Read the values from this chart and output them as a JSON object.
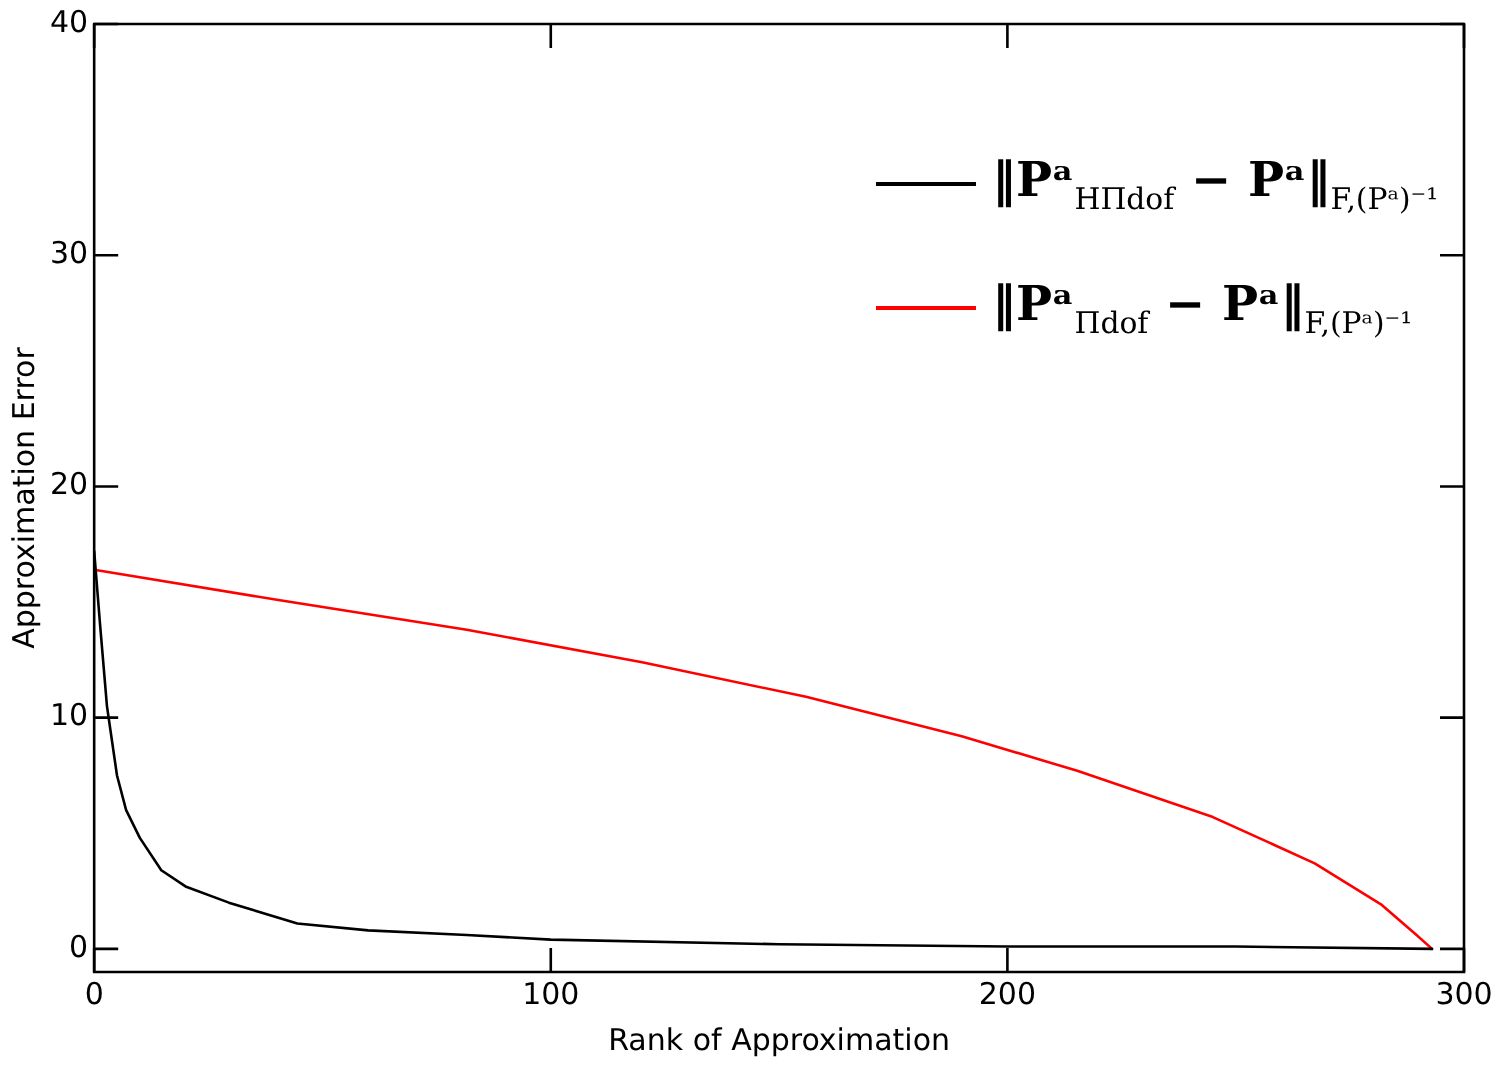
{
  "chart_data": {
    "type": "line",
    "xlabel": "Rank of Approximation",
    "ylabel": "Approximation Error",
    "xlim": [
      0,
      300
    ],
    "xticks": [
      0,
      100,
      200,
      300
    ],
    "ylim": [
      -1,
      40
    ],
    "yticks": [
      0,
      10,
      20,
      30,
      40
    ],
    "grid": false,
    "legend": "top right",
    "marker": "none",
    "line_style": "solid",
    "series": [
      {
        "name": "‖Pᵃ$_{HΠdof}$ − Pᵃ‖$_{F,(Pᵃ)⁻¹}$",
        "color": "#000000",
        "x": [
          0,
          1.3,
          2.8,
          5,
          7,
          10,
          14.7,
          20,
          29.5,
          44.5,
          60,
          81.6,
          100,
          150,
          200,
          250,
          293
        ],
        "values": [
          17.2,
          14,
          10.5,
          7.5,
          6,
          4.8,
          3.4,
          2.7,
          2,
          1.1,
          0.8,
          0.6,
          0.4,
          0.2,
          0.1,
          0.1,
          0
        ]
      },
      {
        "name": "‖Pᵃ$_{Πdof}$ − Pᵃ‖$_{F,(Pᵃ)⁻¹}$",
        "color": "#ff0000",
        "x": [
          0,
          40,
          81.6,
          120,
          155.9,
          190,
          215.3,
          245,
          267.3,
          282,
          289.6,
          293
        ],
        "values": [
          16.4,
          15.1,
          13.8,
          12.4,
          10.9,
          9.2,
          7.7,
          5.7,
          3.7,
          1.9,
          0.6,
          0
        ]
      }
    ]
  }
}
